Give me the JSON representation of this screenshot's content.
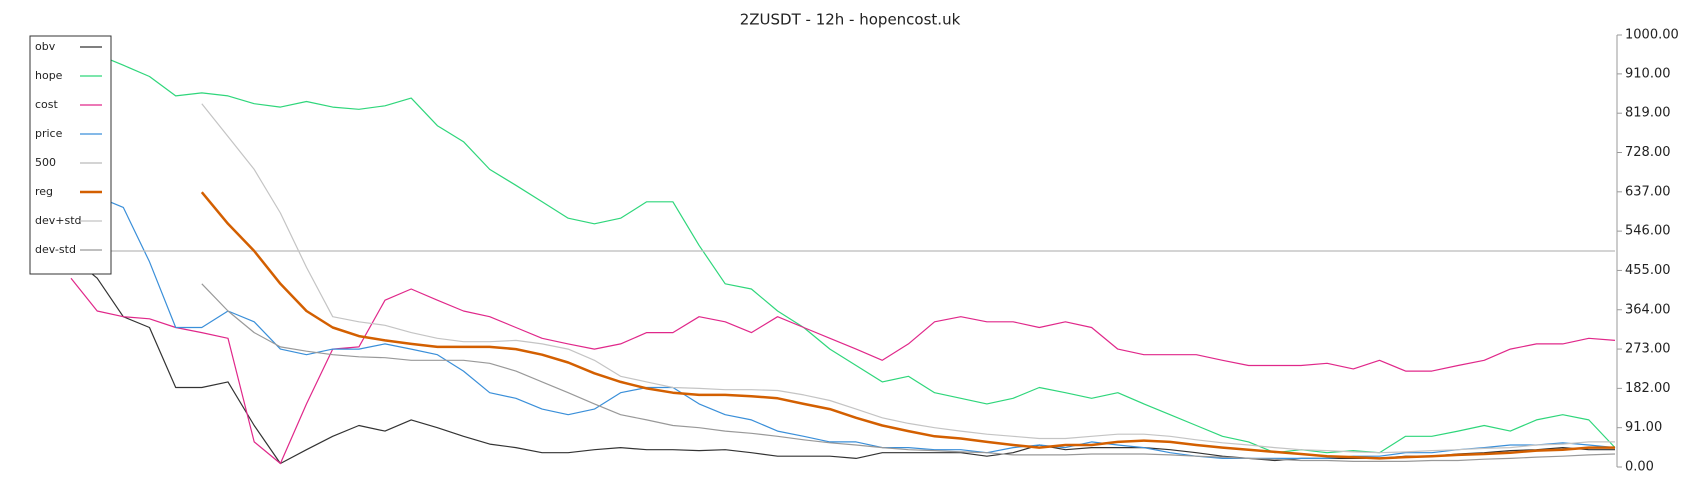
{
  "chart_data": {
    "type": "line",
    "title": "2ZUSDT - 12h - hopencost.uk",
    "categories": [
      null,
      null,
      null,
      null,
      null,
      null,
      null,
      null,
      null,
      null,
      null,
      null,
      null,
      null,
      null,
      null,
      null,
      null,
      null,
      null,
      null,
      null,
      null,
      null,
      null,
      null,
      null,
      null,
      null,
      null,
      null,
      null,
      null,
      null,
      null,
      null,
      null,
      null,
      null,
      null,
      null,
      null,
      null,
      null,
      null,
      null,
      null,
      null,
      null,
      null,
      null,
      null,
      null,
      null,
      null,
      null,
      null,
      null,
      null,
      null
    ],
    "ylim": [
      0,
      1000
    ],
    "yticks": [
      {
        "value": 0,
        "label": "0.00"
      },
      {
        "value": 91,
        "label": "91.00"
      },
      {
        "value": 182,
        "label": "182.00"
      },
      {
        "value": 273,
        "label": "273.00"
      },
      {
        "value": 364,
        "label": "364.00"
      },
      {
        "value": 455,
        "label": "455.00"
      },
      {
        "value": 546,
        "label": "546.00"
      },
      {
        "value": 637,
        "label": "637.00"
      },
      {
        "value": 728,
        "label": "728.00"
      },
      {
        "value": 819,
        "label": "819.00"
      },
      {
        "value": 910,
        "label": "910.00"
      },
      {
        "value": 1000,
        "label": "1000.00"
      }
    ],
    "legend": "upper left",
    "series": [
      {
        "name": "obv",
        "color": "#333333",
        "values": [
          487,
          437,
          348,
          323,
          184,
          184,
          197,
          96,
          8,
          40,
          71,
          96,
          83,
          109,
          91,
          71,
          53,
          45,
          33,
          33,
          40,
          45,
          40,
          40,
          38,
          40,
          33,
          25,
          25,
          25,
          20,
          33,
          33,
          33,
          33,
          25,
          33,
          51,
          40,
          45,
          45,
          45,
          40,
          33,
          25,
          20,
          15,
          20,
          20,
          20,
          20,
          25,
          25,
          30,
          33,
          38,
          40,
          45,
          40,
          40
        ]
      },
      {
        "name": "hope",
        "color": "#2fd67b",
        "values": [
          980,
          955,
          930,
          904,
          859,
          866,
          859,
          841,
          833,
          846,
          833,
          828,
          836,
          854,
          790,
          753,
          689,
          652,
          614,
          576,
          563,
          576,
          614,
          614,
          513,
          424,
          412,
          361,
          323,
          273,
          235,
          197,
          210,
          172,
          159,
          146,
          159,
          184,
          172,
          159,
          172,
          146,
          121,
          96,
          71,
          58,
          33,
          40,
          33,
          38,
          33,
          71,
          71,
          83,
          96,
          83,
          109,
          121,
          109,
          45
        ]
      },
      {
        "name": "cost",
        "color": "#e0288a",
        "values": [
          437,
          361,
          348,
          343,
          323,
          311,
          298,
          58,
          8,
          146,
          273,
          278,
          386,
          412,
          386,
          361,
          348,
          323,
          298,
          285,
          273,
          285,
          311,
          311,
          348,
          336,
          311,
          348,
          323,
          298,
          273,
          247,
          285,
          336,
          348,
          336,
          336,
          323,
          336,
          323,
          273,
          260,
          260,
          260,
          247,
          235,
          235,
          235,
          240,
          227,
          247,
          222,
          222,
          235,
          247,
          273,
          285,
          285,
          298,
          293
        ]
      },
      {
        "name": "price",
        "color": "#3a8fd9",
        "values": [
          702,
          626,
          601,
          475,
          323,
          323,
          361,
          336,
          273,
          260,
          273,
          273,
          285,
          273,
          260,
          222,
          172,
          159,
          134,
          121,
          134,
          172,
          184,
          184,
          146,
          121,
          109,
          83,
          71,
          58,
          58,
          45,
          45,
          40,
          40,
          33,
          45,
          51,
          45,
          58,
          51,
          45,
          33,
          25,
          20,
          20,
          20,
          20,
          20,
          25,
          25,
          33,
          33,
          40,
          45,
          51,
          51,
          56,
          51,
          45
        ]
      },
      {
        "name": "500",
        "color": "#bbbbbb",
        "values": [
          500,
          500,
          500,
          500,
          500,
          500,
          500,
          500,
          500,
          500,
          500,
          500,
          500,
          500,
          500,
          500,
          500,
          500,
          500,
          500,
          500,
          500,
          500,
          500,
          500,
          500,
          500,
          500,
          500,
          500,
          500,
          500,
          500,
          500,
          500,
          500,
          500,
          500,
          500,
          500,
          500,
          500,
          500,
          500,
          500,
          500,
          500,
          500,
          500,
          500,
          500,
          500,
          500,
          500,
          500,
          500,
          500,
          500,
          500,
          500
        ]
      },
      {
        "name": "reg",
        "color": "#d35f00",
        "width": 2.5,
        "values": [
          null,
          null,
          null,
          null,
          null,
          636,
          563,
          500,
          424,
          361,
          323,
          303,
          293,
          285,
          278,
          278,
          278,
          273,
          260,
          242,
          217,
          197,
          182,
          172,
          167,
          167,
          164,
          159,
          146,
          134,
          114,
          96,
          83,
          71,
          66,
          58,
          51,
          45,
          51,
          51,
          58,
          61,
          58,
          51,
          45,
          40,
          35,
          30,
          25,
          23,
          20,
          23,
          25,
          28,
          30,
          33,
          38,
          40,
          45,
          45
        ]
      },
      {
        "name": "dev+std",
        "color": "#c4c4c4",
        "values": [
          null,
          null,
          null,
          null,
          null,
          841,
          765,
          689,
          588,
          462,
          348,
          336,
          328,
          311,
          298,
          290,
          290,
          293,
          285,
          273,
          247,
          210,
          197,
          184,
          182,
          179,
          179,
          177,
          167,
          154,
          134,
          114,
          101,
          91,
          83,
          76,
          71,
          66,
          66,
          71,
          76,
          76,
          71,
          63,
          56,
          51,
          45,
          40,
          38,
          35,
          33,
          35,
          38,
          40,
          43,
          45,
          51,
          53,
          58,
          58
        ]
      },
      {
        "name": "dev-std",
        "color": "#999999",
        "values": [
          null,
          null,
          null,
          null,
          null,
          424,
          361,
          311,
          278,
          268,
          260,
          255,
          253,
          247,
          247,
          247,
          240,
          222,
          197,
          172,
          146,
          121,
          109,
          96,
          91,
          83,
          78,
          71,
          63,
          56,
          51,
          45,
          40,
          38,
          35,
          33,
          28,
          28,
          28,
          30,
          30,
          30,
          28,
          25,
          23,
          20,
          18,
          15,
          15,
          13,
          13,
          13,
          15,
          15,
          18,
          20,
          23,
          25,
          28,
          30
        ]
      }
    ]
  }
}
